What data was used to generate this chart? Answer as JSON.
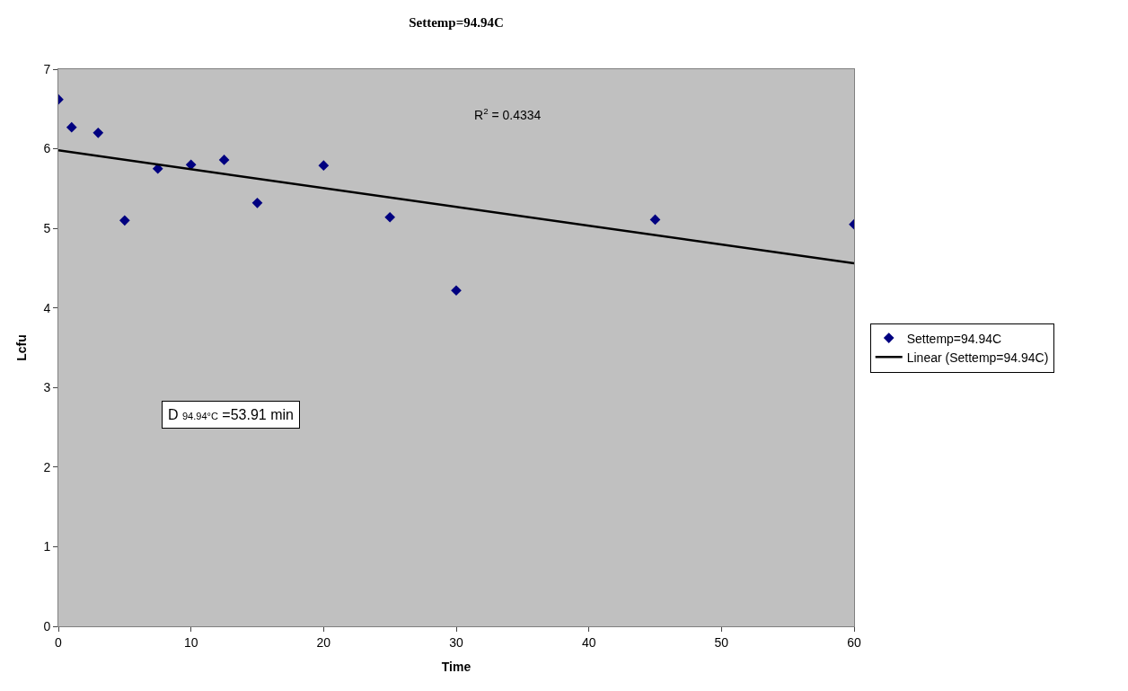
{
  "chart_data": {
    "type": "scatter",
    "title": "Settemp=94.94C",
    "xlabel": "Time",
    "ylabel": "Lcfu",
    "x": [
      0,
      1,
      3,
      5,
      7.5,
      10,
      12.5,
      15,
      20,
      25,
      30,
      45,
      60
    ],
    "series": [
      {
        "name": "Settemp=94.94C",
        "color": "#000080",
        "values": [
          6.62,
          6.27,
          6.2,
          5.1,
          5.75,
          5.8,
          5.86,
          5.32,
          5.79,
          5.14,
          4.22,
          5.11,
          5.05
        ],
        "marker": "diamond"
      },
      {
        "name": "Linear (Settemp=94.94C)",
        "type": "line",
        "color": "#000000",
        "x": [
          0,
          60
        ],
        "values": [
          5.98,
          4.56
        ],
        "marker": "none",
        "line_style": "solid"
      }
    ],
    "annotations": [
      "R$^{2}$ = 0.4334",
      "D $_{94.94°C}$ =53.91 min"
    ],
    "xlim": [
      0,
      60
    ],
    "xticks": [
      0,
      10,
      20,
      30,
      40,
      50,
      60
    ],
    "ylim": [
      0,
      7
    ],
    "yticks": [
      0,
      1,
      2,
      3,
      4,
      5,
      6,
      7
    ],
    "grid": false,
    "legend": "right"
  }
}
